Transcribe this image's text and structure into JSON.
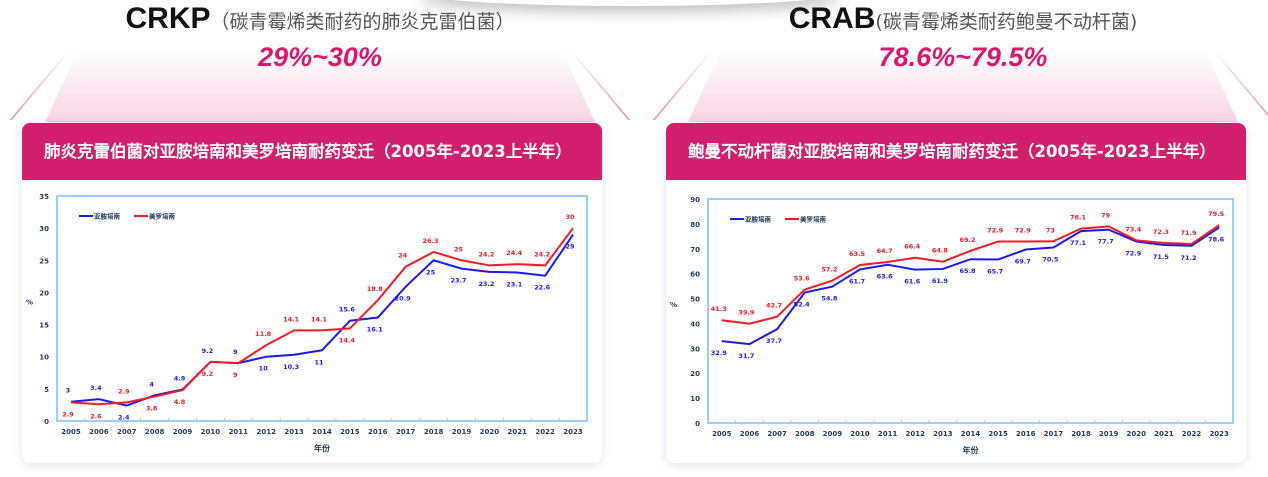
{
  "panels": [
    {
      "code": "CRKP",
      "subtitle": "（碳青霉烯类耐药的肺炎克雷伯菌）",
      "range": "29%~30%",
      "card_title": "肺炎克雷伯菌对亚胺培南和美罗培南耐药变迁（2005年-2023上半年）"
    },
    {
      "code": "CRAB",
      "subtitle": "(碳青霉烯类耐药鲍曼不动杆菌)",
      "range": "78.6%~79.5%",
      "card_title": "鲍曼不动杆菌对亚胺培南和美罗培南耐药变迁（2005年-2023上半年）"
    }
  ],
  "colors": {
    "accent": "#d11f6e",
    "imipenem": "#1a1aee",
    "meropenem": "#ee1c24",
    "axis": "#9ccdf2"
  },
  "chart_data": [
    {
      "type": "line",
      "title": "肺炎克雷伯菌对亚胺培南和美罗培南耐药变迁（2005年-2023上半年）",
      "xlabel": "年份",
      "ylabel": "%",
      "ylim": [
        0,
        35
      ],
      "yticks": [
        0,
        5,
        10,
        15,
        20,
        25,
        30,
        35
      ],
      "legend": "top-left",
      "categories": [
        "2005",
        "2006",
        "2007",
        "2008",
        "2009",
        "2010",
        "2011",
        "2012",
        "2013",
        "2014",
        "2015",
        "2016",
        "2017",
        "2018",
        "2019",
        "2020",
        "2021",
        "2022",
        "2023"
      ],
      "series": [
        {
          "name": "亚胺培南",
          "color": "#1a1aee",
          "values": [
            3,
            3.4,
            2.4,
            4,
            4.9,
            9.2,
            9,
            10,
            10.3,
            11,
            15.6,
            16.1,
            20.9,
            25,
            23.7,
            23.2,
            23.1,
            22.6,
            29
          ]
        },
        {
          "name": "美罗培南",
          "color": "#ee1c24",
          "values": [
            2.9,
            2.6,
            2.9,
            3.8,
            4.8,
            9.2,
            9,
            11.8,
            14.1,
            14.1,
            14.4,
            18.8,
            24,
            26.3,
            25,
            24.2,
            24.4,
            24.2,
            30
          ]
        }
      ]
    },
    {
      "type": "line",
      "title": "鲍曼不动杆菌对亚胺培南和美罗培南耐药变迁（2005年-2023上半年）",
      "xlabel": "年份",
      "ylabel": "%",
      "ylim": [
        0,
        90
      ],
      "yticks": [
        0,
        10,
        20,
        30,
        40,
        50,
        60,
        70,
        80,
        90
      ],
      "legend": "top-left",
      "categories": [
        "2005",
        "2006",
        "2007",
        "2008",
        "2009",
        "2010",
        "2011",
        "2012",
        "2013",
        "2014",
        "2015",
        "2016",
        "2017",
        "2018",
        "2019",
        "2020",
        "2021",
        "2022",
        "2023"
      ],
      "series": [
        {
          "name": "亚胺培南",
          "color": "#1a1aee",
          "values": [
            32.9,
            31.7,
            37.7,
            52.4,
            54.8,
            61.7,
            63.6,
            61.6,
            61.9,
            65.8,
            65.7,
            69.7,
            70.5,
            77.1,
            77.7,
            72.9,
            71.5,
            71.2,
            78.6
          ]
        },
        {
          "name": "美罗培南",
          "color": "#ee1c24",
          "values": [
            41.3,
            39.9,
            42.7,
            53.6,
            57.2,
            63.5,
            64.7,
            66.4,
            64.8,
            69.2,
            72.9,
            72.9,
            73,
            78.1,
            79,
            73.4,
            72.3,
            71.9,
            79.5
          ]
        }
      ]
    }
  ]
}
